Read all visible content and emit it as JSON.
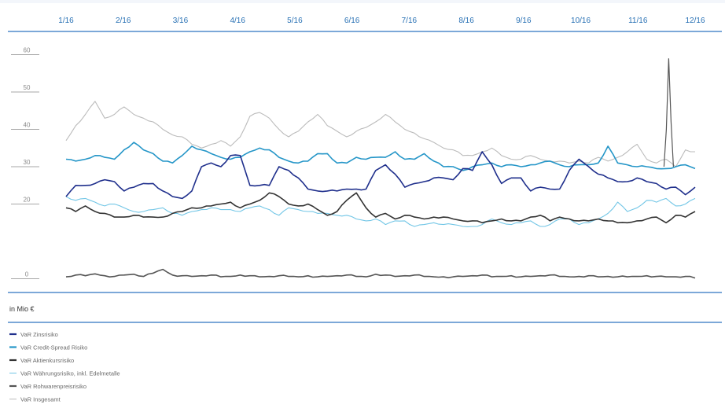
{
  "chart_data": {
    "type": "line",
    "unit_label": "in Mio €",
    "x_ticks": [
      "1/16",
      "2/16",
      "3/16",
      "4/16",
      "5/16",
      "6/16",
      "7/16",
      "8/16",
      "9/16",
      "10/16",
      "11/16",
      "12/16"
    ],
    "y_ticks": [
      0,
      20,
      30,
      40,
      50,
      60
    ],
    "ylim": [
      -2,
      62
    ],
    "grid": false,
    "legend_position": "bottom-left",
    "colors": {
      "month_label": "#2a72b5",
      "axis_line": "#2e74c0",
      "tick_mark": "#8a8a8a"
    },
    "series": [
      {
        "name": "VaR Zinsrisiko",
        "color": "#1f2f8c",
        "legend_style": "solid-thick",
        "values": [
          22,
          25,
          25,
          25.5,
          26.5,
          26,
          23.5,
          24.5,
          25.5,
          25.5,
          23.5,
          22,
          21.5,
          23.5,
          30,
          31,
          30,
          33,
          33,
          25,
          25,
          25,
          30,
          29,
          27,
          24,
          23.5,
          23.5,
          23.5,
          24,
          24,
          24,
          29,
          30.5,
          28,
          24.5,
          25.5,
          26,
          27,
          27,
          26.5,
          29.5,
          29,
          34,
          30.5,
          25.5,
          27,
          27,
          23.5,
          24.5,
          24,
          24,
          29,
          32,
          30,
          28,
          27,
          26,
          26,
          27,
          26,
          25.5,
          24,
          24.5,
          22.5,
          24.5
        ]
      },
      {
        "name": "VaR Credit-Spread Risiko",
        "color": "#2596c8",
        "legend_style": "solid-thick",
        "values": [
          32,
          31.5,
          32,
          33,
          32.5,
          32,
          34.5,
          36.5,
          34.5,
          33.5,
          31.5,
          31,
          33,
          35.5,
          34.5,
          33.5,
          32.5,
          32,
          32.5,
          34,
          35,
          34.5,
          32.5,
          31.5,
          31,
          31.5,
          33.5,
          33.5,
          31,
          31,
          32.5,
          32,
          32.5,
          32.5,
          34,
          32,
          32,
          33.5,
          31.5,
          30,
          30,
          29,
          30,
          30.5,
          31,
          30,
          30.5,
          30,
          30.5,
          31,
          31.5,
          30.5,
          30,
          30.5,
          30.5,
          31,
          35.5,
          31,
          30.5,
          30,
          30,
          29.5,
          29.5,
          30,
          30.5,
          29.5
        ]
      },
      {
        "name": "VaR Aktienkursrisiko",
        "color": "#333333",
        "legend_style": "solid-thick",
        "values": [
          19,
          18,
          19.5,
          18,
          17.5,
          16.5,
          16.5,
          17,
          16.5,
          16.5,
          16.5,
          17.5,
          18,
          19,
          19,
          19.5,
          20,
          20.5,
          19,
          20,
          21,
          23,
          22,
          20,
          19.5,
          20,
          18.5,
          17,
          18,
          21,
          23,
          19,
          16.5,
          17.5,
          16,
          17,
          16.5,
          16,
          16.5,
          16.5,
          16,
          15.5,
          15.5,
          15,
          15.5,
          16,
          15.5,
          15.5,
          16.5,
          17,
          15.5,
          16.5,
          16,
          15.5,
          15.5,
          16,
          15.5,
          15,
          15,
          15.5,
          16,
          16.5,
          15,
          17,
          16.5,
          18
        ]
      },
      {
        "name": "VaR Währungsrisiko, inkl. Edelmetalle",
        "color": "#72c6e6",
        "legend_style": "thin",
        "values": [
          22,
          21,
          21.5,
          20.5,
          19.5,
          20,
          19,
          18,
          18,
          18.5,
          19,
          17.5,
          17,
          18,
          18.5,
          19,
          18.5,
          18.5,
          18,
          19,
          19.5,
          18.5,
          17,
          19,
          18.5,
          18,
          17.5,
          17.5,
          17,
          17,
          16,
          15.5,
          16,
          14.5,
          15.5,
          15.5,
          14,
          14.5,
          15,
          14.5,
          14.5,
          14,
          14,
          14.5,
          16,
          15,
          14.5,
          15,
          15.5,
          14,
          14.5,
          16,
          16,
          14.5,
          15,
          16,
          17.5,
          20.5,
          18,
          19,
          21,
          20.5,
          21.5,
          19.5,
          20,
          21.5
        ]
      },
      {
        "name": "VaR Rohwarenpreisrisiko",
        "color": "#555555",
        "legend_style": "solid-thick",
        "values": [
          0.5,
          1,
          0.8,
          1.3,
          0.8,
          0.6,
          1,
          1.2,
          0.6,
          1.5,
          2.5,
          1,
          0.8,
          0.6,
          0.8,
          1,
          0.5,
          0.6,
          1,
          0.8,
          0.5,
          0.6,
          0.8,
          0.6,
          0.5,
          0.8,
          0.5,
          0.6,
          0.8,
          1,
          0.6,
          0.5,
          1.2,
          1,
          0.6,
          0.8,
          1,
          0.6,
          0.5,
          0.5,
          0.5,
          0.6,
          0.8,
          1,
          0.5,
          0.6,
          0.8,
          0.5,
          0.6,
          0.8,
          1,
          0.6,
          0.5,
          0.6,
          0.8,
          0.5,
          0.6,
          0.5,
          0.5,
          0.6,
          0.8,
          0.6,
          0.5,
          0.5,
          0.6,
          0.2
        ]
      },
      {
        "name": "VaR Insgesamt",
        "color": "#bbbbbb",
        "legend_style": "thin",
        "values": [
          37,
          41,
          44,
          47.5,
          43,
          44,
          46,
          44,
          43,
          42,
          40,
          38.5,
          38,
          36,
          35,
          36,
          37,
          35.5,
          38,
          43.5,
          44.5,
          43,
          40,
          38,
          39.5,
          42,
          44,
          41,
          39.5,
          38,
          39.5,
          40.5,
          42,
          44,
          42,
          40,
          39,
          37.5,
          36.5,
          35,
          34.5,
          33,
          33,
          34,
          35,
          33,
          32,
          32,
          33,
          32,
          31.5,
          31.5,
          31,
          31.5,
          31,
          32.5,
          31.5,
          32.5,
          34,
          36,
          32,
          31,
          32,
          30,
          34.5,
          34
        ]
      }
    ],
    "spike": {
      "series_index": 5,
      "x_fraction": 0.958,
      "values": [
        30,
        40,
        59,
        42,
        30
      ]
    }
  }
}
